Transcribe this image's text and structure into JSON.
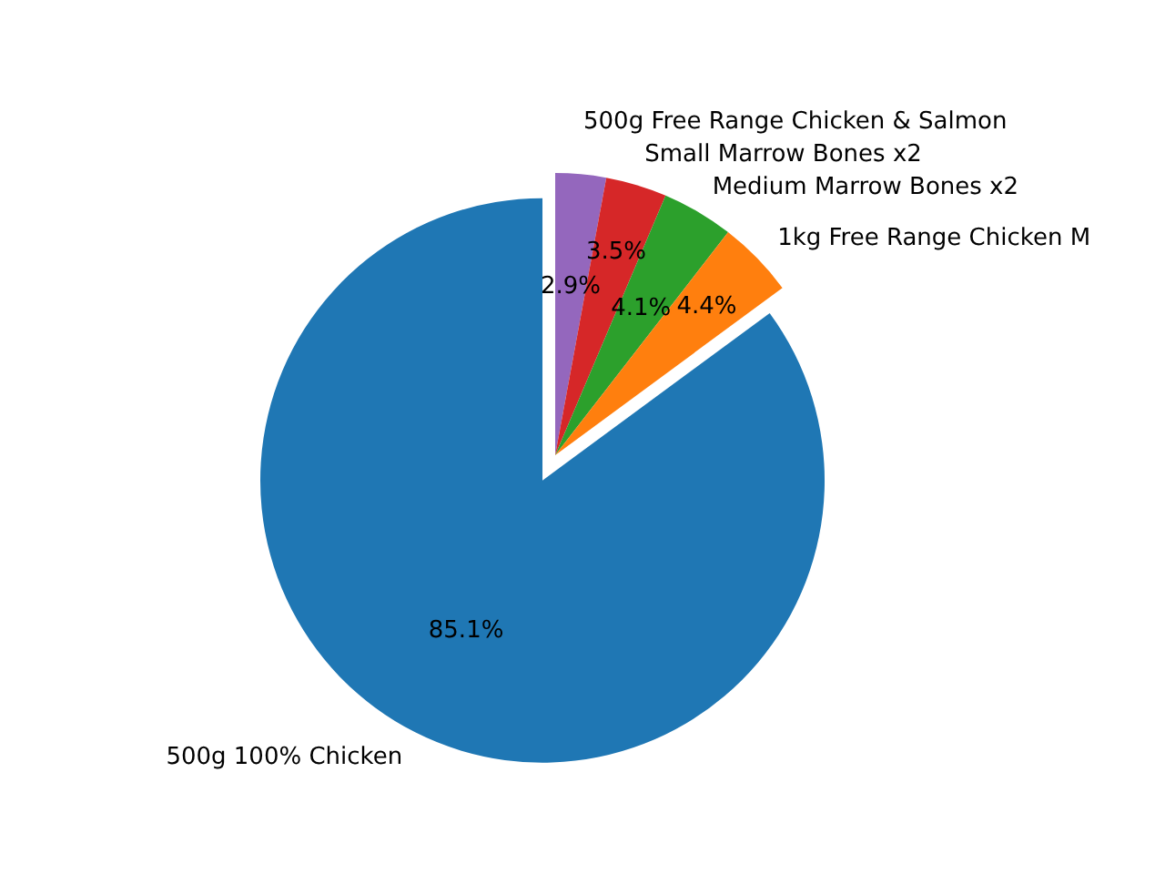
{
  "chart_data": {
    "type": "pie",
    "categories": [
      "500g Free Range Chicken & Salmon",
      "Small Marrow Bones x2",
      "Medium Marrow Bones x2",
      "1kg Free Range Chicken M",
      "500g 100% Chicken"
    ],
    "values": [
      2.9,
      3.5,
      4.1,
      4.4,
      85.1
    ],
    "colors": [
      "#9467bd",
      "#d62728",
      "#2ca02c",
      "#ff7f0e",
      "#1f77b4"
    ],
    "value_labels": [
      "2.9%",
      "3.5%",
      "4.1%",
      "4.4%",
      "85.1%"
    ]
  }
}
